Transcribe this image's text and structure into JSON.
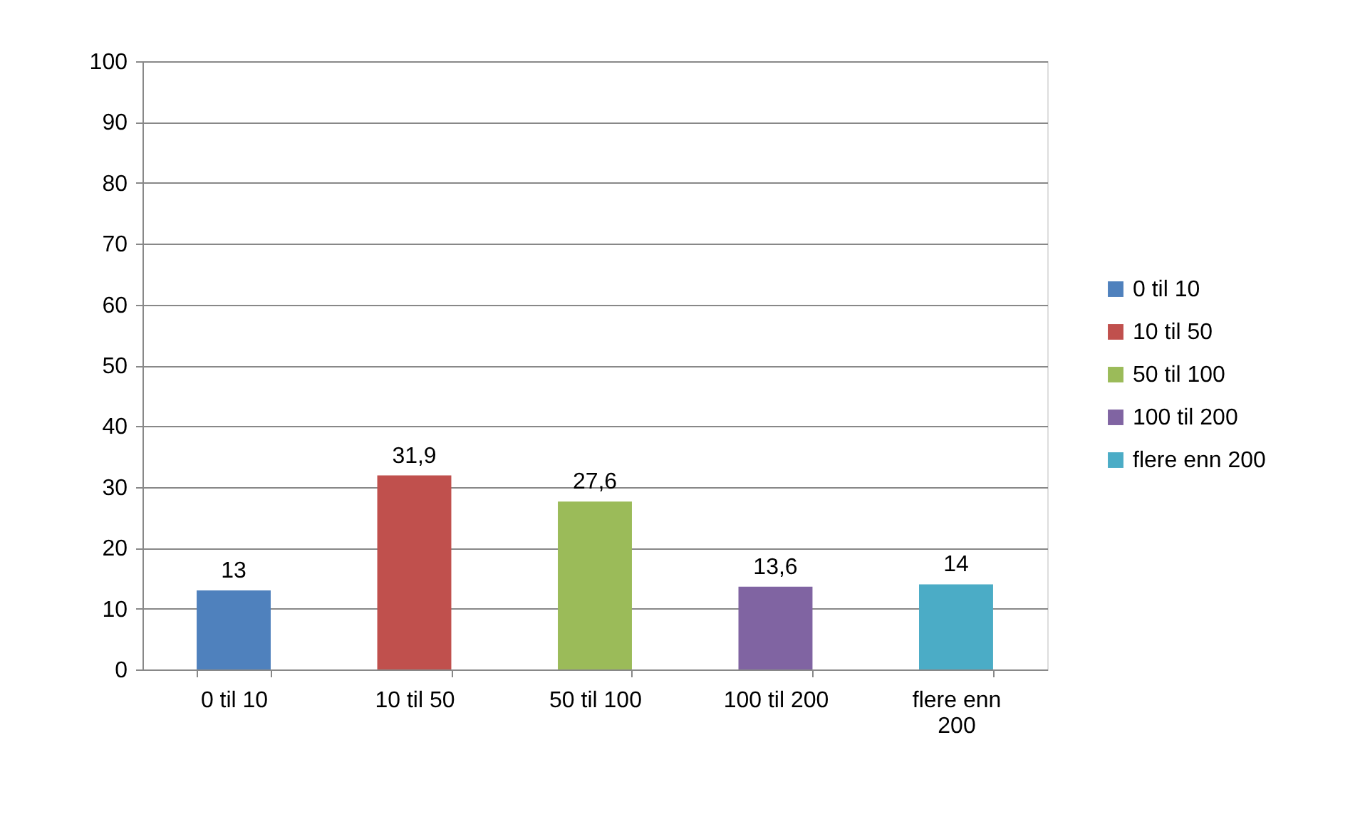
{
  "chart_data": {
    "type": "bar",
    "categories": [
      "0 til 10",
      "10 til 50",
      "50 til 100",
      "100 til 200",
      "flere enn 200"
    ],
    "series": [
      {
        "name": "0 til 10",
        "color": "#4f81bd",
        "values": [
          13,
          null,
          null,
          null,
          null
        ],
        "value_labels": [
          "13",
          null,
          null,
          null,
          null
        ]
      },
      {
        "name": "10 til 50",
        "color": "#c0504d",
        "values": [
          null,
          31.9,
          null,
          null,
          null
        ],
        "value_labels": [
          null,
          "31,9",
          null,
          null,
          null
        ]
      },
      {
        "name": "50 til 100",
        "color": "#9bbb59",
        "values": [
          null,
          null,
          27.6,
          null,
          null
        ],
        "value_labels": [
          null,
          null,
          "27,6",
          null,
          null
        ]
      },
      {
        "name": "100 til 200",
        "color": "#8064a2",
        "values": [
          null,
          null,
          null,
          13.6,
          null
        ],
        "value_labels": [
          null,
          null,
          null,
          "13,6",
          null
        ]
      },
      {
        "name": "flere enn 200",
        "color": "#4bacc6",
        "values": [
          null,
          null,
          null,
          null,
          14
        ],
        "value_labels": [
          null,
          null,
          null,
          null,
          "14"
        ]
      }
    ],
    "ylim": [
      0,
      100
    ],
    "yticks": [
      0,
      10,
      20,
      30,
      40,
      50,
      60,
      70,
      80,
      90,
      100
    ],
    "grid": "y",
    "legend": "right"
  }
}
